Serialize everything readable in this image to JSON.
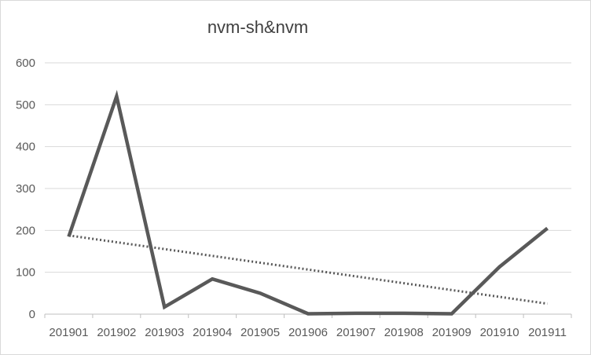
{
  "chart_data": {
    "type": "line",
    "title": "nvm-sh&nvm",
    "xlabel": "",
    "ylabel": "",
    "categories": [
      "201901",
      "201902",
      "201903",
      "201904",
      "201905",
      "201906",
      "201907",
      "201908",
      "201909",
      "201910",
      "201911"
    ],
    "series": [
      {
        "values": [
          185,
          520,
          17,
          84,
          50,
          1,
          2,
          2,
          1,
          113,
          205
        ],
        "color": "#595959"
      }
    ],
    "trendline": {
      "type": "linear",
      "style": "dotted",
      "color": "#595959",
      "start": 188,
      "end": 25
    },
    "ylim": [
      0,
      600
    ],
    "yticks": [
      0,
      100,
      200,
      300,
      400,
      500,
      600
    ],
    "grid": true,
    "legend": "none"
  }
}
